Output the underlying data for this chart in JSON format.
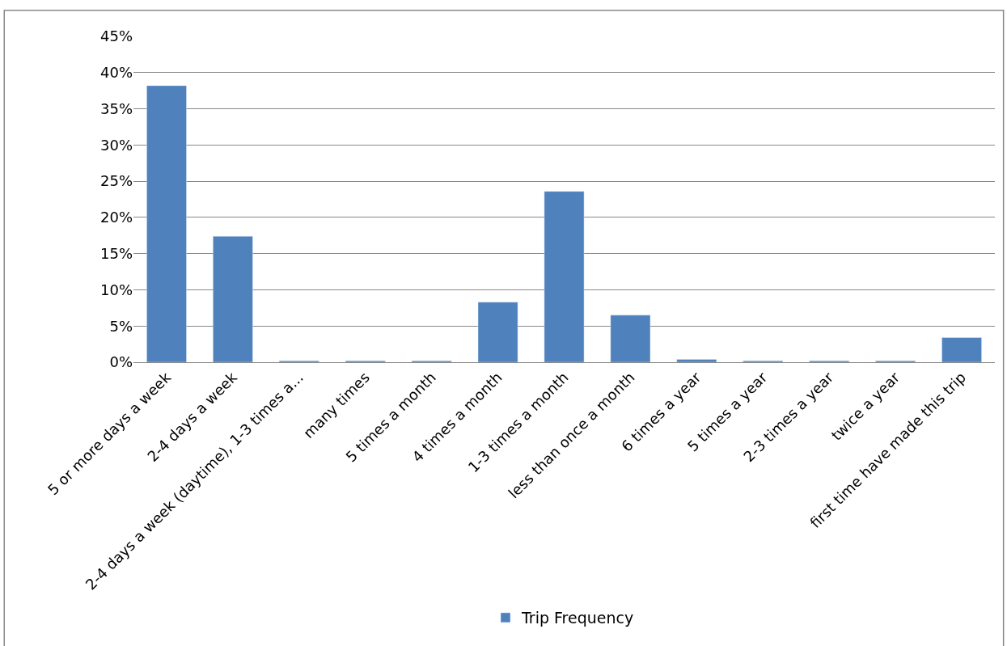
{
  "chart_data": {
    "type": "bar",
    "categories": [
      "5 or more days a week",
      "2-4 days a week",
      "2-4 days a week (daytime), 1-3 times a...",
      "many times",
      "5 times a month",
      "4 times a month",
      "1-3 times a month",
      "less than once a month",
      "6 times a year",
      "5 times a year",
      "2-3 times a year",
      "twice a year",
      "first time have made this trip"
    ],
    "series": [
      {
        "name": "Trip Frequency",
        "color": "#4f81bd",
        "values": [
          38.2,
          17.4,
          0.2,
          0.2,
          0.2,
          8.3,
          23.6,
          6.5,
          0.4,
          0.2,
          0.2,
          0.2,
          3.4
        ]
      }
    ],
    "ylim": [
      0,
      45
    ],
    "yticks": [
      {
        "value": 0,
        "label": "0%"
      },
      {
        "value": 5,
        "label": "5%"
      },
      {
        "value": 10,
        "label": "10%"
      },
      {
        "value": 15,
        "label": "15%"
      },
      {
        "value": 20,
        "label": "20%"
      },
      {
        "value": 25,
        "label": "25%"
      },
      {
        "value": 30,
        "label": "30%"
      },
      {
        "value": 35,
        "label": "35%"
      },
      {
        "value": 40,
        "label": "40%"
      },
      {
        "value": 45,
        "label": "45%"
      }
    ],
    "grid": "y",
    "legend": "bottom"
  }
}
